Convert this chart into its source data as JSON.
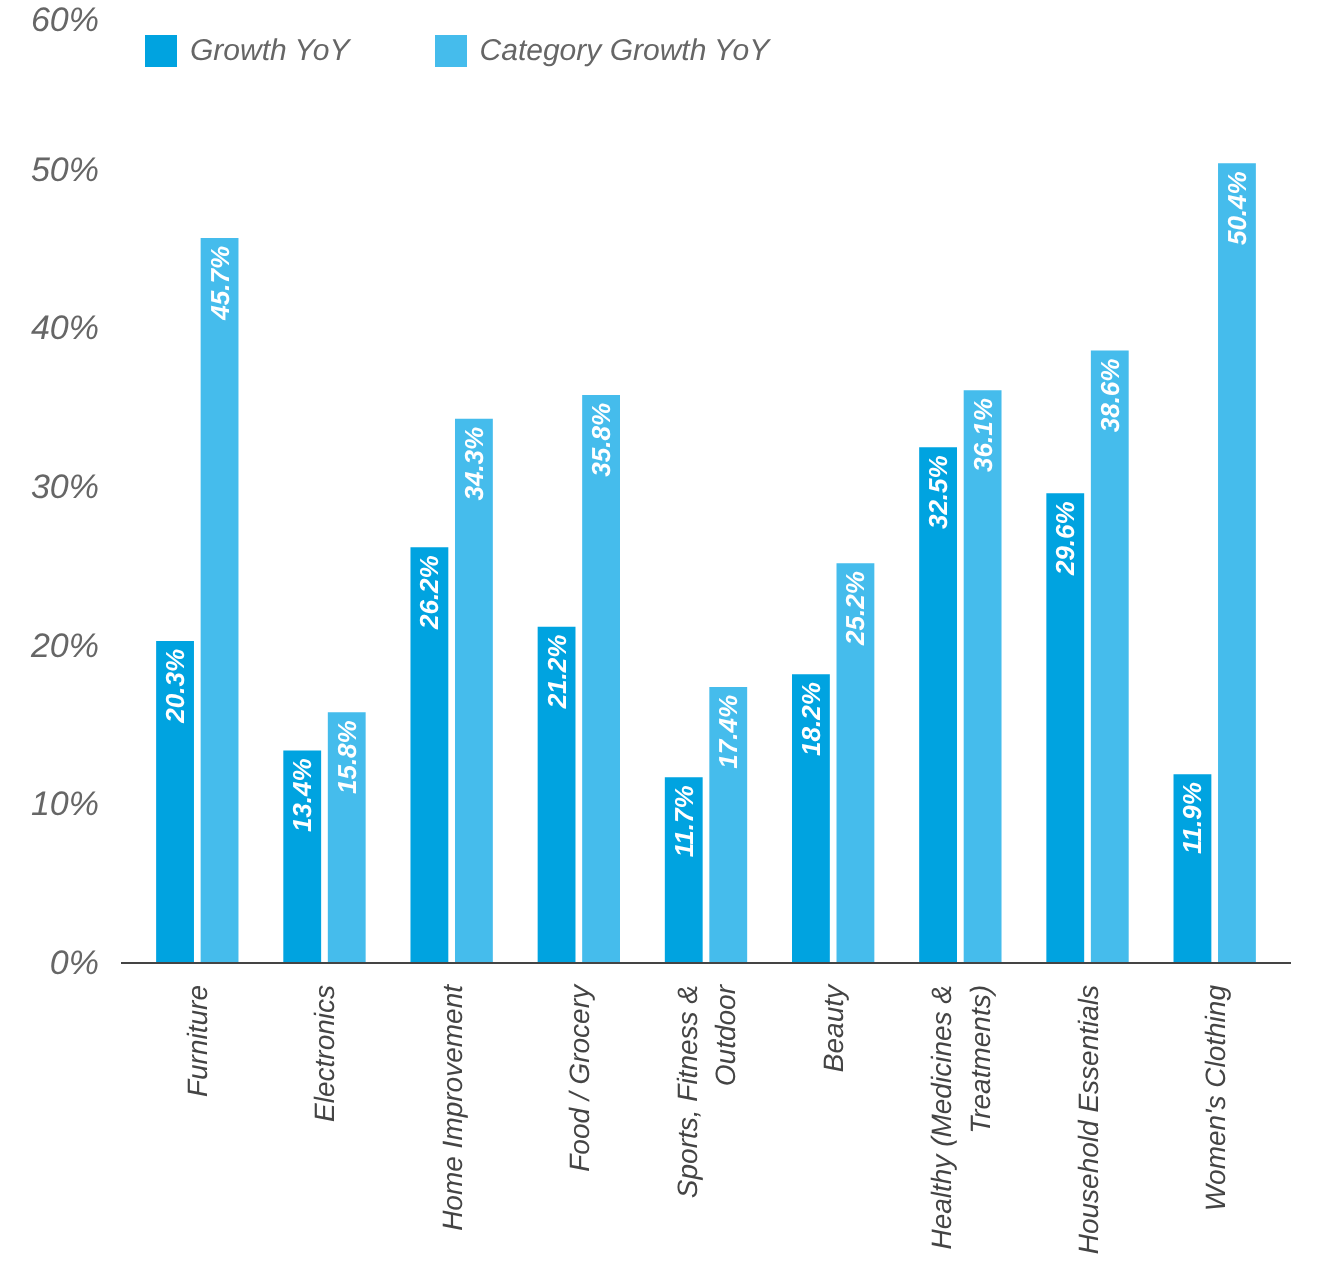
{
  "chart_data": {
    "type": "bar",
    "categories": [
      "Furniture",
      "Electronics",
      "Home Improvement",
      "Food / Grocery",
      "Sports, Fitness & Outdoor",
      "Beauty",
      "Healthy (Medicines & Treatments)",
      "Household Essentials",
      "Women's Clothing"
    ],
    "series": [
      {
        "name": "Growth YoY",
        "color": "#00a3e0",
        "values": [
          20.3,
          13.4,
          26.2,
          21.2,
          11.7,
          18.2,
          32.5,
          29.6,
          11.9
        ],
        "value_labels": [
          "20.3%",
          "13.4%",
          "26.2%",
          "21.2%",
          "11.7%",
          "18.2%",
          "32.5%",
          "29.6%",
          "11.9%"
        ]
      },
      {
        "name": "Category Growth YoY",
        "color": "#45bcec",
        "values": [
          45.7,
          15.8,
          34.3,
          35.8,
          17.4,
          25.2,
          36.1,
          38.6,
          50.4
        ],
        "value_labels": [
          "45.7%",
          "15.8%",
          "34.3%",
          "35.8%",
          "17.4%",
          "25.2%",
          "36.1%",
          "38.6%",
          "50.4%"
        ]
      }
    ],
    "ylim": [
      0,
      60
    ],
    "yticks": [
      {
        "value": 0,
        "label": "0%"
      },
      {
        "value": 10,
        "label": "10%"
      },
      {
        "value": 20,
        "label": "20%"
      },
      {
        "value": 30,
        "label": "30%"
      },
      {
        "value": 40,
        "label": "40%"
      },
      {
        "value": 50,
        "label": "50%"
      },
      {
        "value": 60,
        "label": "60%"
      }
    ],
    "grid": false,
    "legend": "top left"
  }
}
